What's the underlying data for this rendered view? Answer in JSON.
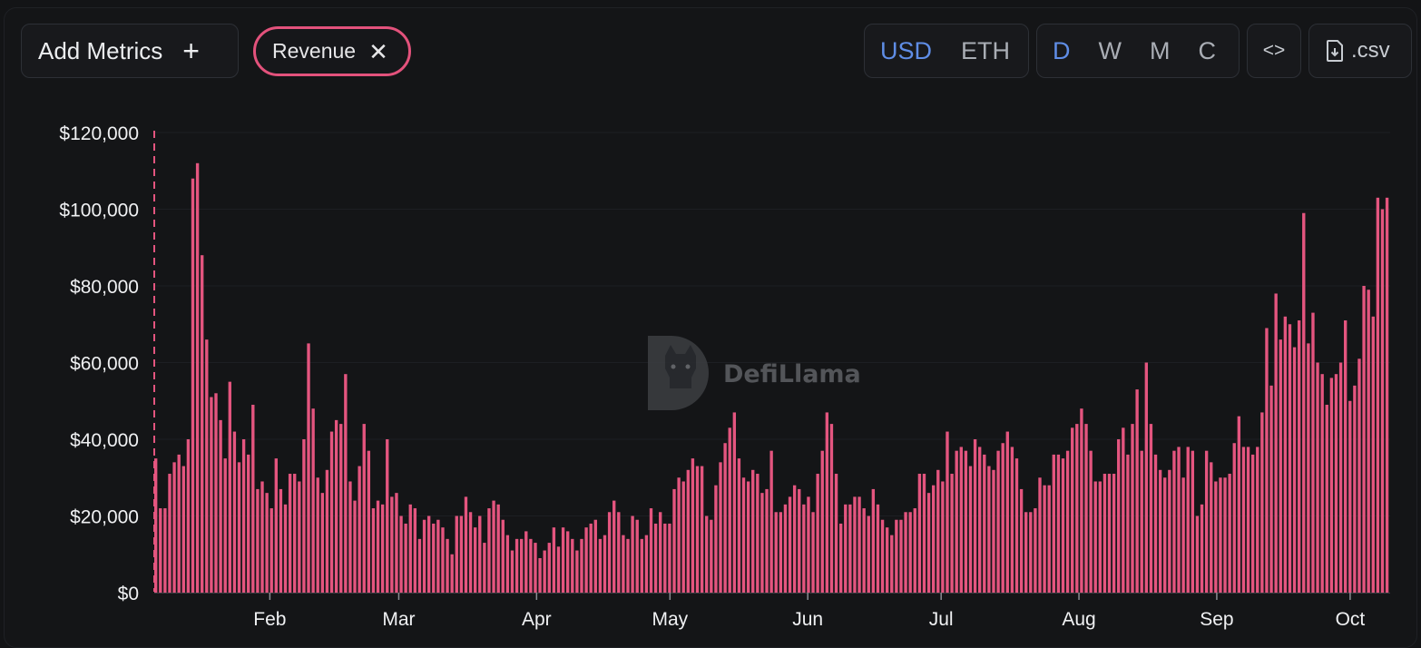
{
  "toolbar": {
    "add_metrics_label": "Add Metrics",
    "add_icon": "plus-icon",
    "metric_chip_label": "Revenue",
    "metric_chip_remove_icon": "close-icon",
    "currency_options": [
      "USD",
      "ETH"
    ],
    "currency_selected": "USD",
    "period_options": [
      "D",
      "W",
      "M",
      "C"
    ],
    "period_selected": "D",
    "embed_label": "<>",
    "embed_icon": "code-icon",
    "csv_label": ".csv",
    "csv_icon": "file-download-icon"
  },
  "watermark": {
    "text": "DefiLlama",
    "icon": "llama-logo-icon"
  },
  "colors": {
    "bar": "#e4557f",
    "accent": "#5f8de6",
    "background": "#131416"
  },
  "chart_data": {
    "type": "bar",
    "series": [
      {
        "name": "Revenue"
      }
    ],
    "ylim": [
      0,
      120000
    ],
    "yticks": [
      "$0",
      "$20,000",
      "$40,000",
      "$60,000",
      "$80,000",
      "$100,000",
      "$120,000"
    ],
    "xticks": [
      "Feb",
      "Mar",
      "Apr",
      "May",
      "Jun",
      "Jul",
      "Aug",
      "Sep",
      "Oct"
    ],
    "x_start": "2024-01-06",
    "x_end": "2024-10-09",
    "values": [
      35000,
      22000,
      22000,
      31000,
      34000,
      36000,
      33000,
      40000,
      108000,
      112000,
      88000,
      66000,
      51000,
      52000,
      45000,
      35000,
      55000,
      42000,
      34000,
      40000,
      36000,
      49000,
      27000,
      29000,
      26000,
      22000,
      35000,
      27000,
      23000,
      31000,
      31000,
      29000,
      40000,
      65000,
      48000,
      30000,
      26000,
      32000,
      42000,
      45000,
      44000,
      57000,
      29000,
      24000,
      33000,
      44000,
      37000,
      22000,
      24000,
      23000,
      40000,
      25000,
      26000,
      20000,
      18000,
      23000,
      22000,
      14000,
      19000,
      20000,
      18000,
      19000,
      17000,
      14000,
      10000,
      20000,
      20000,
      25000,
      21000,
      17000,
      20000,
      13000,
      22000,
      24000,
      23000,
      19000,
      15000,
      11000,
      14000,
      14000,
      16000,
      14000,
      13000,
      9000,
      11000,
      13000,
      17000,
      12000,
      17000,
      16000,
      14000,
      11000,
      14000,
      17000,
      18000,
      19000,
      14000,
      15000,
      21000,
      24000,
      21000,
      15000,
      14000,
      20000,
      19000,
      14000,
      15000,
      22000,
      18000,
      21000,
      18000,
      18000,
      27000,
      30000,
      29000,
      32000,
      35000,
      33000,
      33000,
      20000,
      19000,
      28000,
      34000,
      39000,
      43000,
      47000,
      35000,
      30000,
      29000,
      32000,
      31000,
      26000,
      27000,
      37000,
      21000,
      21000,
      23000,
      25000,
      28000,
      27000,
      23000,
      25000,
      21000,
      31000,
      37000,
      47000,
      44000,
      31000,
      18000,
      23000,
      23000,
      25000,
      25000,
      22000,
      20000,
      27000,
      23000,
      19000,
      17000,
      15000,
      19000,
      19000,
      21000,
      21000,
      22000,
      31000,
      31000,
      26000,
      28000,
      32000,
      29000,
      42000,
      31000,
      37000,
      38000,
      37000,
      33000,
      40000,
      38000,
      36000,
      33000,
      32000,
      37000,
      39000,
      42000,
      38000,
      35000,
      27000,
      21000,
      21000,
      22000,
      30000,
      28000,
      28000,
      36000,
      36000,
      35000,
      37000,
      43000,
      44000,
      48000,
      44000,
      37000,
      29000,
      29000,
      31000,
      31000,
      31000,
      40000,
      43000,
      36000,
      44000,
      53000,
      37000,
      60000,
      44000,
      36000,
      32000,
      30000,
      32000,
      37000,
      38000,
      30000,
      38000,
      37000,
      20000,
      23000,
      37000,
      34000,
      29000,
      30000,
      30000,
      31000,
      39000,
      46000,
      38000,
      38000,
      36000,
      38000,
      47000,
      69000,
      54000,
      78000,
      66000,
      72000,
      70000,
      64000,
      71000,
      99000,
      65000,
      73000,
      60000,
      57000,
      49000,
      56000,
      57000,
      60000,
      71000,
      50000,
      54000,
      61000,
      80000,
      79000,
      72000,
      103000,
      100000,
      103000
    ]
  }
}
